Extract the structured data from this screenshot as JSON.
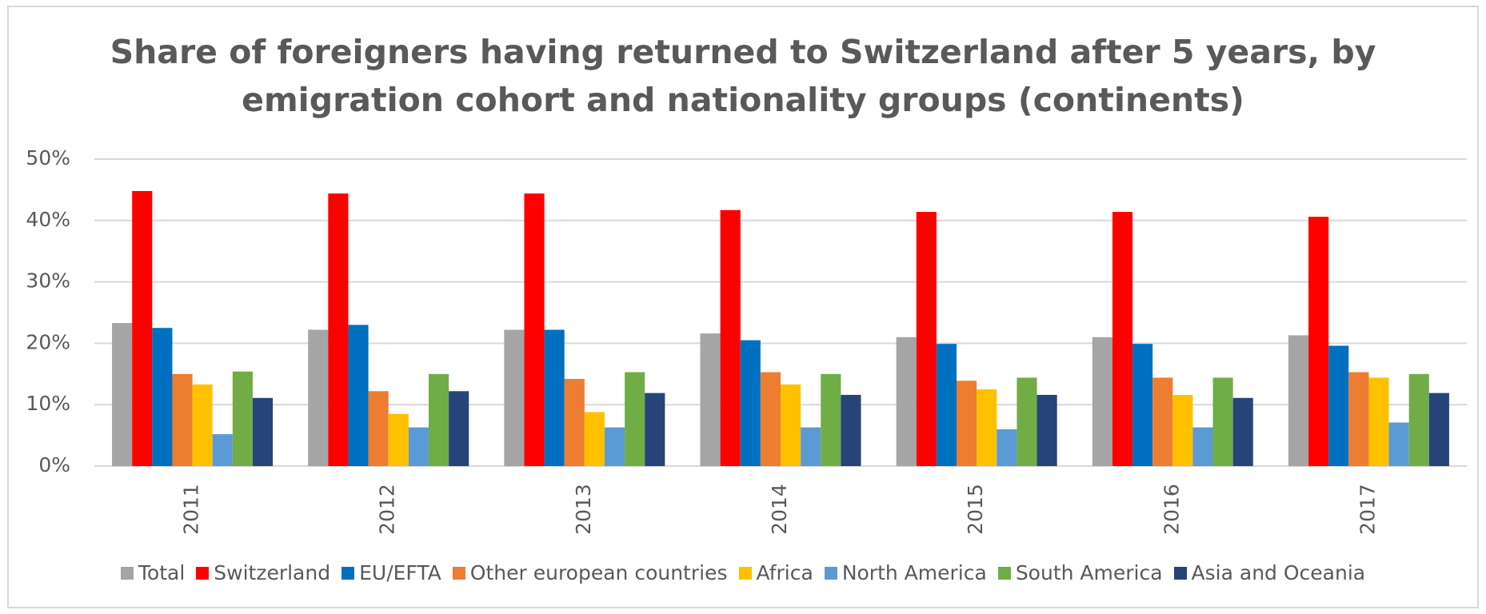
{
  "chart_data": {
    "type": "bar",
    "title": [
      "Share of foreigners having returned to Switzerland after 5 years, by",
      "emigration cohort and nationality groups (continents)"
    ],
    "categories": [
      "2011",
      "2012",
      "2013",
      "2014",
      "2015",
      "2016",
      "2017"
    ],
    "series": [
      {
        "name": "Total",
        "color": "#a5a5a5",
        "values": [
          23.3,
          22.2,
          22.2,
          21.6,
          21.0,
          21.0,
          21.3
        ]
      },
      {
        "name": "Switzerland",
        "color": "#ff0000",
        "values": [
          44.8,
          44.4,
          44.4,
          41.7,
          41.4,
          41.4,
          40.6
        ]
      },
      {
        "name": "EU/EFTA",
        "color": "#0070c0",
        "values": [
          22.5,
          23.0,
          22.2,
          20.5,
          19.9,
          19.9,
          19.6
        ]
      },
      {
        "name": "Other european countries",
        "color": "#ed7d31",
        "values": [
          15.0,
          12.2,
          14.2,
          15.3,
          13.9,
          14.4,
          15.3
        ]
      },
      {
        "name": "Africa",
        "color": "#ffc000",
        "values": [
          13.3,
          8.5,
          8.8,
          13.3,
          12.5,
          11.6,
          14.4
        ]
      },
      {
        "name": "North America",
        "color": "#5b9bd5",
        "values": [
          5.2,
          6.3,
          6.3,
          6.3,
          6.0,
          6.3,
          7.1
        ]
      },
      {
        "name": "South America",
        "color": "#70ad47",
        "values": [
          15.4,
          15.0,
          15.3,
          15.0,
          14.4,
          14.4,
          15.0
        ]
      },
      {
        "name": "Asia and Oceania",
        "color": "#264478",
        "values": [
          11.1,
          12.2,
          11.9,
          11.6,
          11.6,
          11.1,
          11.9
        ]
      }
    ],
    "ylim": [
      0,
      50
    ],
    "yticks": [
      {
        "value": 0,
        "label": "0%"
      },
      {
        "value": 10,
        "label": "10%"
      },
      {
        "value": 20,
        "label": "20%"
      },
      {
        "value": 30,
        "label": "30%"
      },
      {
        "value": 40,
        "label": "40%"
      },
      {
        "value": 50,
        "label": "50%"
      }
    ],
    "grid": true,
    "legend": "bottom"
  }
}
